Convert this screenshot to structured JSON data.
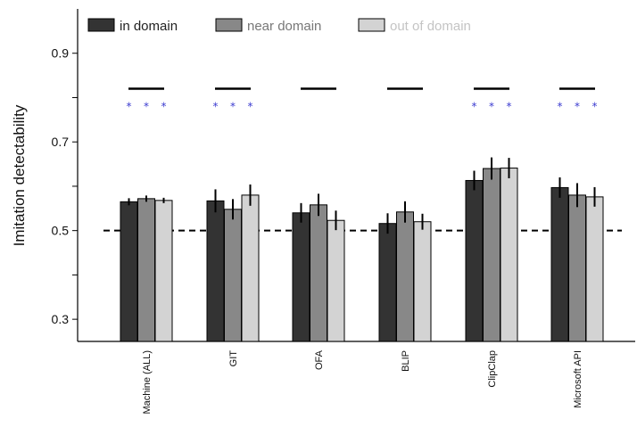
{
  "chart_data": {
    "type": "bar",
    "ylabel": "Imitation detectability",
    "xlabel": "",
    "ylim": [
      0.25,
      1.0
    ],
    "yticks": [
      0.3,
      0.5,
      0.7,
      0.9
    ],
    "ytick_labels": [
      "0.3",
      "0.5",
      "0.7",
      "0.9"
    ],
    "reference_line": 0.5,
    "categories": [
      "Machine (ALL)",
      "GIT",
      "OFA",
      "BLIP",
      "ClipClap",
      "Microsoft API"
    ],
    "series": [
      {
        "name": "in domain",
        "color": "#333333",
        "values": [
          0.565,
          0.567,
          0.54,
          0.516,
          0.613,
          0.597
        ],
        "errors": [
          0.008,
          0.026,
          0.022,
          0.023,
          0.022,
          0.023
        ]
      },
      {
        "name": "near domain",
        "color": "#888888",
        "values": [
          0.572,
          0.548,
          0.558,
          0.542,
          0.64,
          0.58
        ],
        "errors": [
          0.007,
          0.023,
          0.025,
          0.024,
          0.025,
          0.027
        ]
      },
      {
        "name": "out of domain",
        "color": "#d3d3d3",
        "values": [
          0.568,
          0.58,
          0.523,
          0.52,
          0.641,
          0.576
        ],
        "errors": [
          0.006,
          0.024,
          0.022,
          0.018,
          0.023,
          0.022
        ]
      }
    ],
    "significance": {
      "bar_level": 0.82,
      "star_level": 0.784,
      "marks": [
        [
          "*",
          "*",
          "*"
        ],
        [
          "*",
          "*",
          "*"
        ],
        [
          "",
          "",
          ""
        ],
        [
          "",
          "",
          ""
        ],
        [
          "*",
          "*",
          "*"
        ],
        [
          "*",
          "*",
          "*"
        ]
      ]
    },
    "legend": {
      "placement": "top-left",
      "text_colors": [
        "#222222",
        "#777777",
        "#c4c4c4"
      ]
    }
  }
}
